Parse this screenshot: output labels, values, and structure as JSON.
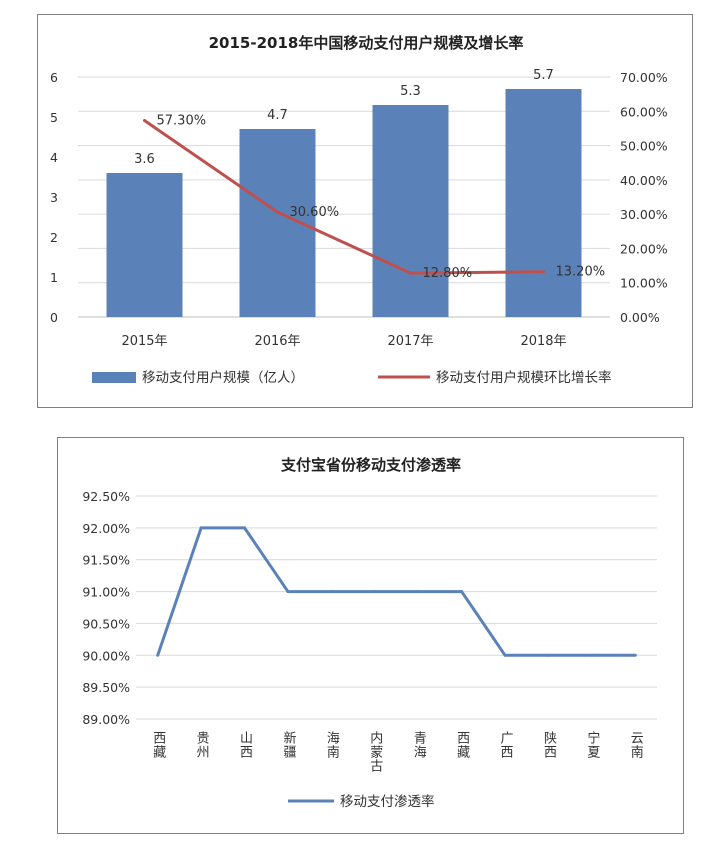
{
  "chart_data": [
    {
      "type": "bar",
      "title": "2015-2018年中国移动支付用户规模及增长率",
      "categories": [
        "2015年",
        "2016年",
        "2017年",
        "2018年"
      ],
      "series": [
        {
          "name": "移动支付用户规模（亿人）",
          "type": "bar",
          "axis": "left",
          "values": [
            3.6,
            4.7,
            5.3,
            5.7
          ],
          "labels": [
            "3.6",
            "4.7",
            "5.3",
            "5.7"
          ]
        },
        {
          "name": "移动支付用户规模环比增长率",
          "type": "line",
          "axis": "right",
          "values": [
            57.3,
            30.6,
            12.8,
            13.2
          ],
          "labels": [
            "57.30%",
            "30.60%",
            "12.80%",
            "13.20%"
          ]
        }
      ],
      "y_left": {
        "min": 0,
        "max": 6,
        "ticks": [
          "0",
          "1",
          "2",
          "3",
          "4",
          "5",
          "6"
        ]
      },
      "y_right": {
        "min": 0,
        "max": 70,
        "ticks": [
          "0.00%",
          "10.00%",
          "20.00%",
          "30.00%",
          "40.00%",
          "50.00%",
          "60.00%",
          "70.00%"
        ]
      },
      "grid": true,
      "legend": "bottom",
      "colors": {
        "bar": "#5b82b8",
        "line": "#c0504d"
      }
    },
    {
      "type": "line",
      "title": "支付宝省份移动支付渗透率",
      "categories": [
        "西藏",
        "贵州",
        "山西",
        "新疆",
        "海南",
        "内蒙古",
        "青海",
        "西藏",
        "广西",
        "陕西",
        "宁夏",
        "云南"
      ],
      "series": [
        {
          "name": "移动支付渗透率",
          "values": [
            90.0,
            92.0,
            92.0,
            91.0,
            91.0,
            91.0,
            91.0,
            91.0,
            90.0,
            90.0,
            90.0,
            90.0
          ]
        }
      ],
      "y": {
        "min": 89.0,
        "max": 92.5,
        "ticks": [
          "89.00%",
          "89.50%",
          "90.00%",
          "90.50%",
          "91.00%",
          "91.50%",
          "92.00%",
          "92.50%"
        ]
      },
      "grid": true,
      "legend": "bottom",
      "colors": {
        "line": "#5b82b8"
      }
    }
  ]
}
